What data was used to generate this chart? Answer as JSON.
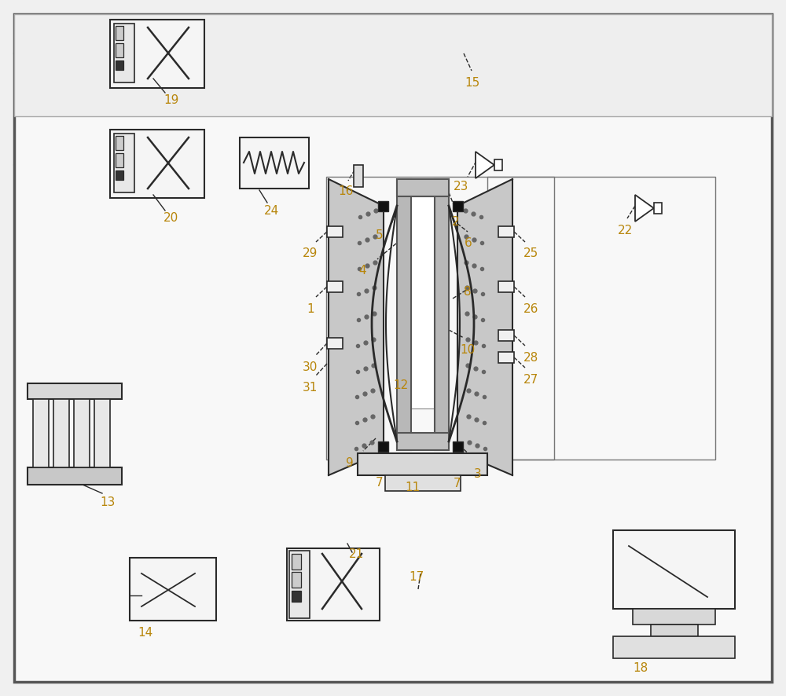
{
  "bg_color": "#f0f0f0",
  "line_color": "#2a2a2a",
  "wire_color": "#3a6a3a",
  "fig_width": 10.0,
  "fig_height": 8.86,
  "label_color": "#b8860b"
}
